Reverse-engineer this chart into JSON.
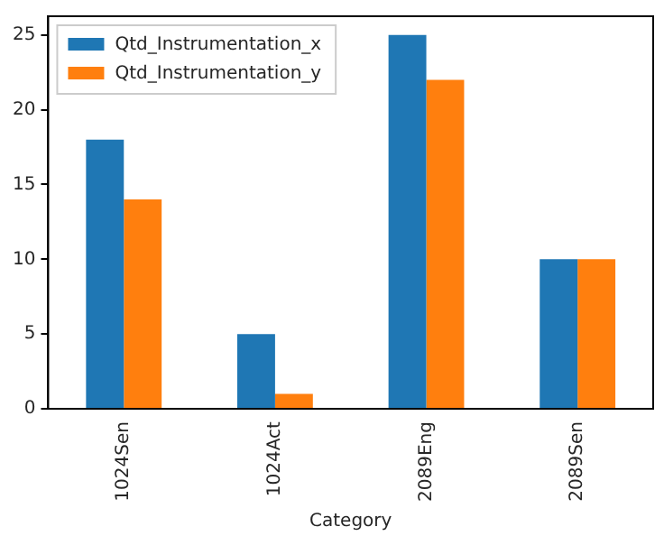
{
  "chart_data": {
    "type": "bar",
    "xlabel": "Category",
    "categories": [
      "1024Sen",
      "1024Act",
      "2089Eng",
      "2089Sen"
    ],
    "series": [
      {
        "name": "Qtd_Instrumentation_x",
        "color": "#1f77b4",
        "values": [
          18,
          5,
          25,
          10
        ]
      },
      {
        "name": "Qtd_Instrumentation_y",
        "color": "#ff7f0e",
        "values": [
          14,
          1,
          22,
          10
        ]
      }
    ],
    "ylim": [
      0,
      26.25
    ],
    "yticks": [
      0,
      5,
      10,
      15,
      20,
      25
    ],
    "grid": false,
    "legend": "top left"
  }
}
